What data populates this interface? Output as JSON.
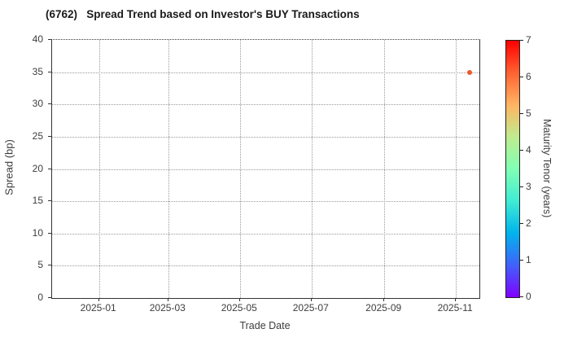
{
  "title": "(6762)   Spread Trend based on Investor's BUY Transactions",
  "colors": {
    "background": "#ffffff",
    "title_text": "#1a1a1a",
    "axis_text": "#3d3d3d",
    "spine": "#333333",
    "gridline": "#9a9a9a",
    "point": "#f0572a"
  },
  "chart_data": {
    "type": "scatter",
    "title": "(6762)   Spread Trend based on Investor's BUY Transactions",
    "xlabel": "Trade Date",
    "ylabel": "Spread (bp)",
    "grid": true,
    "x_axis": {
      "start_date": "2024-11-22",
      "end_date": "2025-11-21",
      "tick_dates": [
        "2025-01-01",
        "2025-03-01",
        "2025-05-01",
        "2025-07-01",
        "2025-09-01",
        "2025-11-01"
      ],
      "tick_labels": [
        "2025-01",
        "2025-03",
        "2025-05",
        "2025-07",
        "2025-09",
        "2025-11"
      ]
    },
    "y_axis": {
      "min": 0,
      "max": 40,
      "ticks": [
        0,
        5,
        10,
        15,
        20,
        25,
        30,
        35,
        40
      ],
      "grid_ticks": [
        5,
        10,
        15,
        20,
        25,
        30,
        35,
        40
      ]
    },
    "points": [
      {
        "date": "2025-11-13",
        "spread_bp": 35.0,
        "maturity_tenor_years": 6.2,
        "color": "#f0572a"
      }
    ],
    "colorbar": {
      "label": "Maturity Tenor (years)",
      "min": 0,
      "max": 7,
      "ticks": [
        0,
        1,
        2,
        3,
        4,
        5,
        6,
        7
      ],
      "colormap": "rainbow",
      "stops": [
        {
          "pos": 0.0,
          "color": "#8000ff"
        },
        {
          "pos": 0.125,
          "color": "#4062fa"
        },
        {
          "pos": 0.25,
          "color": "#00b4ec"
        },
        {
          "pos": 0.375,
          "color": "#40ecd4"
        },
        {
          "pos": 0.5,
          "color": "#80ffb4"
        },
        {
          "pos": 0.625,
          "color": "#bfec8e"
        },
        {
          "pos": 0.75,
          "color": "#ffb462"
        },
        {
          "pos": 0.875,
          "color": "#ff6232"
        },
        {
          "pos": 1.0,
          "color": "#ff0000"
        }
      ]
    }
  }
}
